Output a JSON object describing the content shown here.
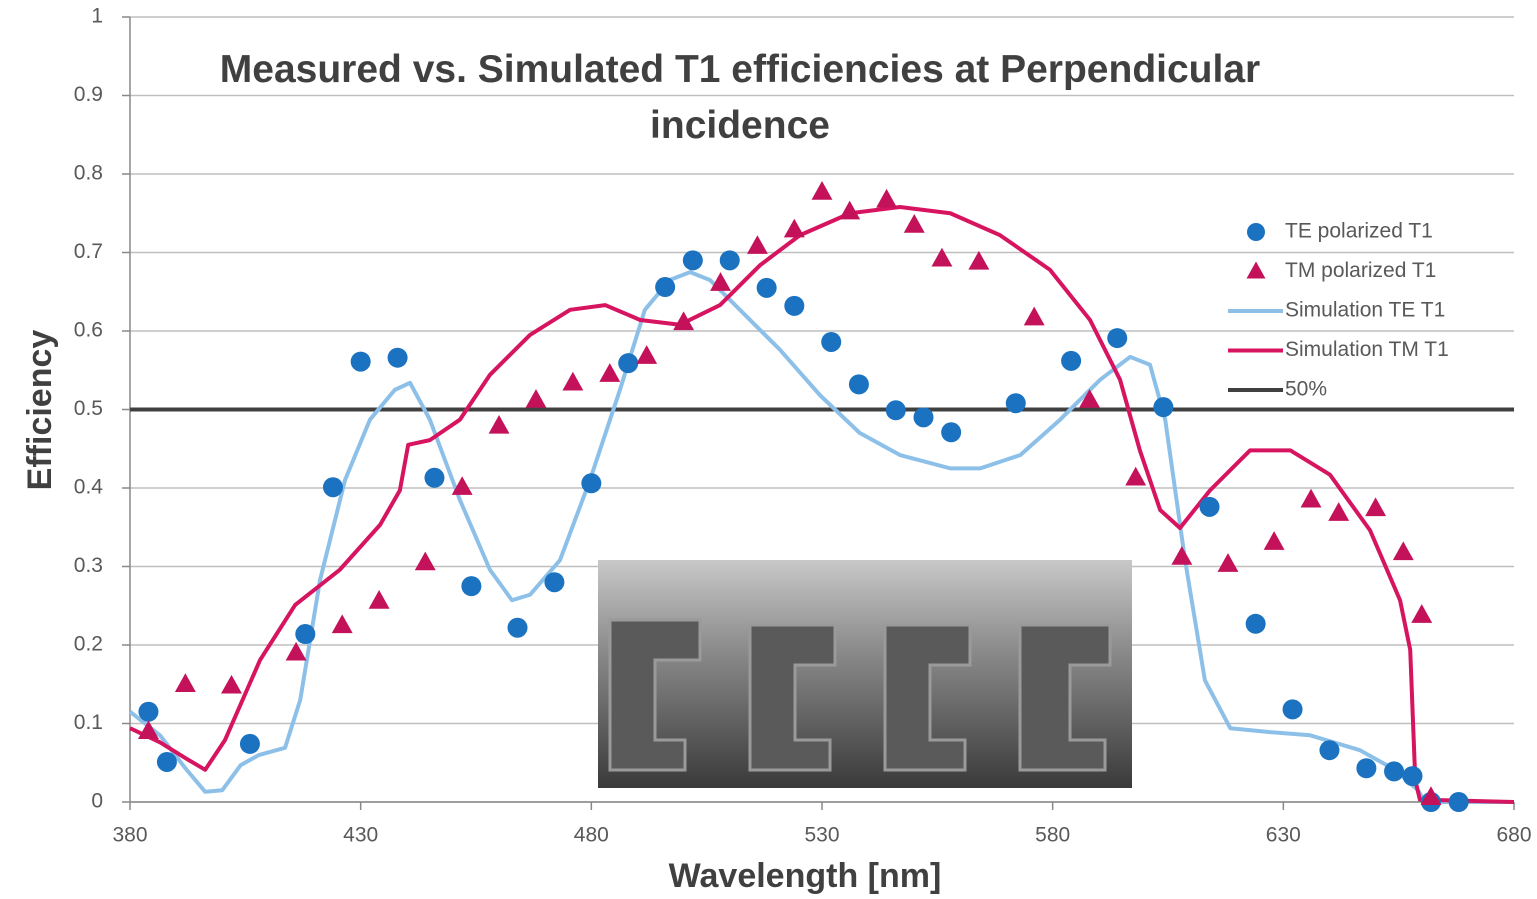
{
  "chart_data": {
    "type": "scatter",
    "title": "Measured vs. Simulated T1 efficiencies at Perpendicular incidence",
    "x_label": "Wavelength [nm]",
    "y_label": "Efficiency",
    "xlim": [
      380,
      680
    ],
    "xticks": [
      380,
      430,
      480,
      530,
      580,
      630,
      680
    ],
    "ylim": [
      0,
      1
    ],
    "yticks": [
      0,
      0.1,
      0.2,
      0.3,
      0.4,
      0.5,
      0.6,
      0.7,
      0.8,
      0.9,
      1
    ],
    "grid": true,
    "legend": "right",
    "series": [
      {
        "name": "TE polarized T1",
        "type": "scatter",
        "marker": "circle",
        "color": "#1a72c0",
        "x": [
          384,
          388,
          406,
          418,
          424,
          430,
          438,
          446,
          454,
          464,
          472,
          480,
          488,
          496,
          502,
          510,
          518,
          524,
          532,
          538,
          546,
          552,
          558,
          572,
          584,
          594,
          604,
          614,
          624,
          632,
          640,
          648,
          654,
          658,
          662,
          668
        ],
        "values": [
          0.115,
          0.051,
          0.074,
          0.214,
          0.401,
          0.561,
          0.566,
          0.413,
          0.275,
          0.222,
          0.28,
          0.406,
          0.559,
          0.656,
          0.69,
          0.69,
          0.655,
          0.632,
          0.586,
          0.532,
          0.499,
          0.49,
          0.471,
          0.508,
          0.562,
          0.591,
          0.503,
          0.376,
          0.227,
          0.118,
          0.066,
          0.043,
          0.039,
          0.033,
          0,
          0
        ]
      },
      {
        "name": "TM polarized T1",
        "type": "scatter",
        "marker": "triangle",
        "color": "#c4125a",
        "x": [
          384,
          392,
          402,
          416,
          426,
          434,
          444,
          452,
          460,
          468,
          476,
          484,
          492,
          500,
          508,
          516,
          524,
          530,
          536,
          544,
          550,
          556,
          564,
          576,
          588,
          598,
          608,
          618,
          628,
          636,
          642,
          650,
          656,
          660,
          662
        ],
        "values": [
          0.09,
          0.15,
          0.148,
          0.19,
          0.225,
          0.256,
          0.305,
          0.401,
          0.479,
          0.512,
          0.534,
          0.545,
          0.568,
          0.611,
          0.661,
          0.708,
          0.729,
          0.777,
          0.752,
          0.767,
          0.735,
          0.692,
          0.688,
          0.617,
          0.512,
          0.413,
          0.312,
          0.303,
          0.331,
          0.385,
          0.368,
          0.374,
          0.318,
          0.238,
          0.006
        ]
      },
      {
        "name": "Simulation TE T1",
        "type": "line",
        "color": "#8dc0e8",
        "x": [
          380,
          386.5,
          392,
          396.3,
          400,
          404,
          408,
          413.6,
          416.9,
          421.2,
          426.6,
          432,
          437.4,
          440.7,
          445,
          451.5,
          458,
          462.8,
          466.7,
          473.2,
          479.7,
          486.2,
          491.6,
          497,
          501.4,
          505.7,
          512.2,
          520.9,
          529.6,
          538.2,
          546.9,
          557.8,
          564.3,
          573,
          581.6,
          590.3,
          596.8,
          601.1,
          604.4,
          608.7,
          613,
          618.5,
          627.1,
          635.8,
          646.6,
          654.2,
          659.2,
          660.7,
          680
        ],
        "values": [
          0.115,
          0.085,
          0.043,
          0.013,
          0.015,
          0.047,
          0.06,
          0.069,
          0.13,
          0.283,
          0.41,
          0.487,
          0.525,
          0.534,
          0.487,
          0.385,
          0.296,
          0.257,
          0.264,
          0.308,
          0.41,
          0.525,
          0.627,
          0.665,
          0.675,
          0.665,
          0.627,
          0.576,
          0.518,
          0.47,
          0.442,
          0.425,
          0.425,
          0.442,
          0.487,
          0.538,
          0.567,
          0.557,
          0.487,
          0.308,
          0.155,
          0.094,
          0.089,
          0.085,
          0.066,
          0.041,
          0.015,
          0,
          0
        ]
      },
      {
        "name": "Simulation TM T1",
        "type": "line",
        "color": "#d6145f",
        "x": [
          380,
          386.5,
          392,
          396.3,
          400.6,
          408.2,
          415.8,
          425.5,
          434.2,
          438.5,
          440.3,
          445,
          451.5,
          458,
          466.7,
          475.4,
          483,
          490.6,
          499.2,
          507.9,
          516.6,
          525.2,
          536.1,
          546.9,
          557.8,
          568.6,
          579.4,
          588.1,
          594.6,
          598.9,
          603.3,
          607.6,
          614.1,
          622.8,
          631.5,
          640.1,
          648.8,
          655.3,
          657.5,
          658.6,
          659.6,
          680
        ],
        "values": [
          0.094,
          0.076,
          0.056,
          0.041,
          0.079,
          0.181,
          0.251,
          0.296,
          0.353,
          0.397,
          0.455,
          0.461,
          0.487,
          0.544,
          0.595,
          0.627,
          0.633,
          0.614,
          0.608,
          0.633,
          0.684,
          0.722,
          0.75,
          0.758,
          0.75,
          0.722,
          0.678,
          0.614,
          0.538,
          0.448,
          0.372,
          0.349,
          0.397,
          0.448,
          0.448,
          0.417,
          0.346,
          0.257,
          0.194,
          0.028,
          0.003,
          0
        ]
      }
    ],
    "reference_lines": [
      {
        "name": "50%",
        "value": 0.5,
        "color": "#404040"
      }
    ]
  }
}
